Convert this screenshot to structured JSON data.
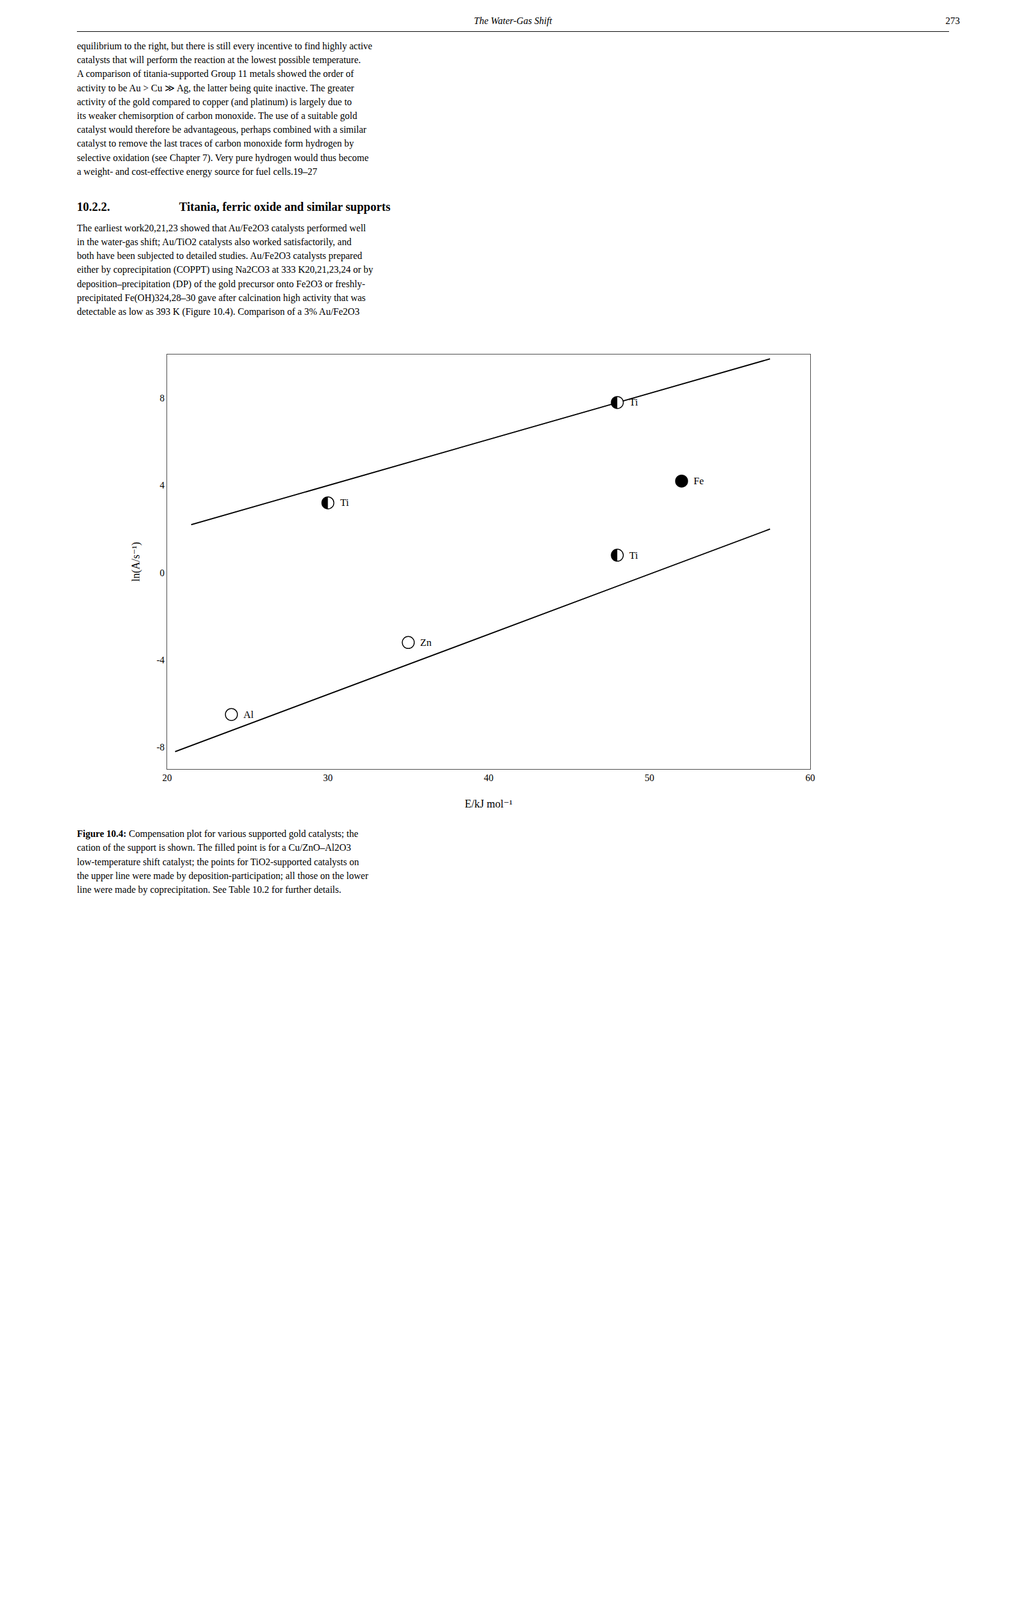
{
  "page": {
    "header": "The Water-Gas Shift",
    "page_number": "273",
    "body_before": [
      "equilibrium to the right, but there is still every incentive to find highly active",
      "catalysts that will perform the reaction at the lowest possible temperature.",
      "A comparison of titania-supported Group 11 metals showed the order of",
      "activity to be Au > Cu ≫ Ag, the latter being quite inactive. The greater",
      "activity of the gold compared to copper (and platinum) is largely due to",
      "its weaker chemisorption of carbon monoxide. The use of a suitable gold",
      "catalyst would therefore be advantageous, perhaps combined with a similar",
      "catalyst to remove the last traces of carbon monoxide form hydrogen by",
      "selective oxidation (see Chapter 7). Very pure hydrogen would thus become",
      "a weight- and cost-effective energy source for fuel cells.19–27"
    ],
    "section_number": "10.2.2.",
    "section_title": "Titania, ferric oxide and similar supports",
    "body_after": [
      "The earliest work20,21,23 showed that Au/Fe2O3 catalysts performed well",
      "in the water-gas shift; Au/TiO2 catalysts also worked satisfactorily, and",
      "both have been subjected to detailed studies. Au/Fe2O3 catalysts prepared",
      "either by coprecipitation (COPPT) using Na2CO3 at 333 K20,21,23,24 or by",
      "deposition–precipitation (DP) of the gold precursor onto Fe2O3 or freshly-",
      "precipitated Fe(OH)324,28–30 gave after calcination high activity that was",
      "detectable as low as 393 K (Figure 10.4). Comparison of a 3% Au/Fe2O3"
    ],
    "caption_bold": "Figure 10.4:",
    "caption": " Compensation plot for various supported gold catalysts; the\ncation of the support is shown. The filled point is for a Cu/ZnO–Al2O3\nlow-temperature shift catalyst; the points for TiO2-supported catalysts on\nthe upper line were made by deposition-participation; all those on the lower\nline were made by coprecipitation. See Table 10.2 for further details."
  },
  "chart_data": {
    "type": "scatter",
    "xlabel": "E/kJ mol⁻¹",
    "ylabel": "ln(A/s⁻¹)",
    "xlim": [
      20,
      60
    ],
    "ylim": [
      -9,
      10
    ],
    "xticks": [
      20,
      30,
      40,
      50,
      60
    ],
    "yticks": [
      -8,
      -4,
      0,
      4,
      8
    ],
    "grid": false,
    "color": "#000000",
    "series": [
      {
        "type": "line",
        "x": [
          21.5,
          57.5
        ],
        "values": [
          2.2,
          9.8
        ]
      },
      {
        "type": "line",
        "x": [
          20.5,
          57.5
        ],
        "values": [
          -8.2,
          2.0
        ]
      },
      {
        "type": "scatter",
        "marker": "half",
        "x": [
          30.0
        ],
        "values": [
          3.2
        ]
      },
      {
        "type": "scatter",
        "marker": "half",
        "x": [
          48.0
        ],
        "values": [
          7.8
        ]
      },
      {
        "type": "scatter",
        "marker": "filled",
        "x": [
          52.0
        ],
        "values": [
          4.2
        ]
      },
      {
        "type": "scatter",
        "marker": "half",
        "x": [
          48.0
        ],
        "values": [
          0.8
        ]
      },
      {
        "type": "scatter",
        "marker": "open",
        "x": [
          35.0
        ],
        "values": [
          -3.2
        ]
      },
      {
        "type": "scatter",
        "marker": "open",
        "x": [
          24.0
        ],
        "values": [
          -6.5
        ]
      }
    ],
    "annotations": [
      {
        "x": 30.0,
        "y": 3.2,
        "text": "Ti"
      },
      {
        "x": 48.0,
        "y": 7.8,
        "text": "Ti"
      },
      {
        "x": 52.0,
        "y": 4.2,
        "text": "Fe"
      },
      {
        "x": 48.0,
        "y": 0.8,
        "text": "Ti"
      },
      {
        "x": 35.0,
        "y": -3.2,
        "text": "Zn"
      },
      {
        "x": 24.0,
        "y": -6.5,
        "text": "Al"
      }
    ]
  }
}
